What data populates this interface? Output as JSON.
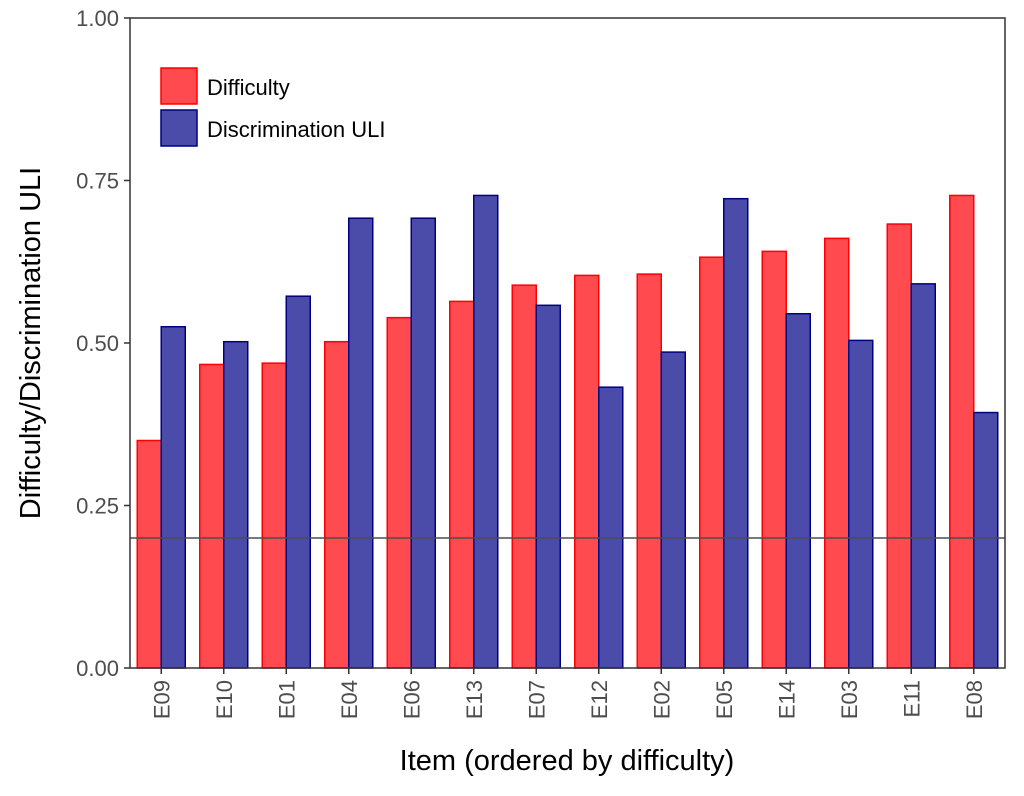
{
  "chart_data": {
    "type": "bar",
    "title": "",
    "xlabel": "Item (ordered by difficulty)",
    "ylabel": "Difficulty/Discrimination ULI",
    "ylim": [
      0,
      1
    ],
    "yticks": [
      "0.00",
      "0.25",
      "0.50",
      "0.75",
      "1.00"
    ],
    "categories": [
      "E09",
      "E10",
      "E01",
      "E04",
      "E06",
      "E13",
      "E07",
      "E12",
      "E02",
      "E05",
      "E14",
      "E03",
      "E11",
      "E08"
    ],
    "series": [
      {
        "name": "Difficulty",
        "fill": "#ff4a4f",
        "stroke": "#ff0000",
        "values": [
          0.35,
          0.467,
          0.469,
          0.502,
          0.539,
          0.564,
          0.589,
          0.604,
          0.606,
          0.632,
          0.641,
          0.661,
          0.683,
          0.727
        ]
      },
      {
        "name": "Discrimination ULI",
        "fill": "#4b4baa",
        "stroke": "#000080",
        "values": [
          0.525,
          0.502,
          0.572,
          0.692,
          0.692,
          0.727,
          0.558,
          0.432,
          0.486,
          0.722,
          0.545,
          0.504,
          0.591,
          0.393
        ]
      }
    ],
    "reference_line": {
      "y": 0.2,
      "color": "#4d4d4d"
    },
    "grid": false,
    "legend": {
      "position": "top-left"
    }
  }
}
